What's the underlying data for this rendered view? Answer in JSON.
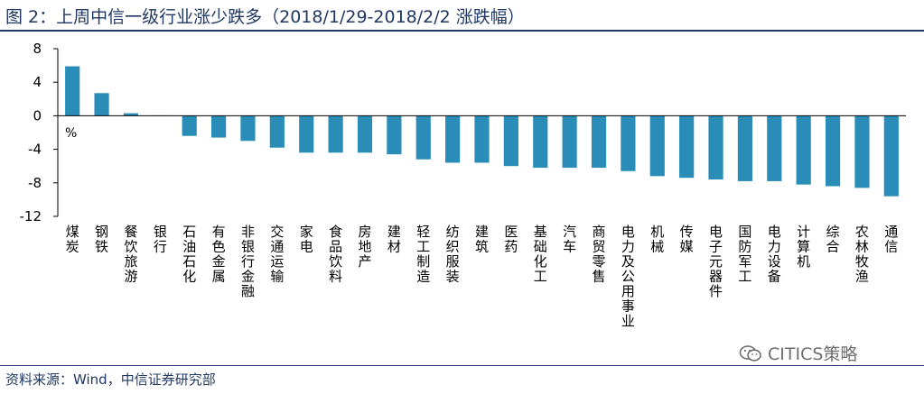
{
  "header": {
    "title": "图 2：上周中信一级行业涨少跌多（2018/1/29-2018/2/2 涨跌幅）"
  },
  "footer": {
    "source": "资料来源：Wind，中信证券研究部",
    "watermark": "CITICS策略",
    "watermark_icon": "wechat-icon"
  },
  "chart_data": {
    "type": "bar",
    "unit_label": "%",
    "ylim": [
      -12,
      8
    ],
    "yticks": [
      8,
      4,
      0,
      -4,
      -8,
      -12
    ],
    "grid": false,
    "bar_color": "#2A8DB8",
    "categories": [
      "煤炭",
      "钢铁",
      "餐饮旅游",
      "银行",
      "石油石化",
      "有色金属",
      "非银行金融",
      "交通运输",
      "家电",
      "食品饮料",
      "房地产",
      "建材",
      "轻工制造",
      "纺织服装",
      "建筑",
      "医药",
      "基础化工",
      "汽车",
      "商贸零售",
      "电力及公用事业",
      "机械",
      "传媒",
      "电子元器件",
      "国防军工",
      "电力设备",
      "计算机",
      "综合",
      "农林牧渔",
      "通信"
    ],
    "values": [
      5.9,
      2.7,
      0.3,
      0.05,
      -2.4,
      -2.6,
      -3.0,
      -3.8,
      -4.4,
      -4.4,
      -4.4,
      -4.6,
      -5.2,
      -5.6,
      -5.6,
      -6.0,
      -6.2,
      -6.2,
      -6.2,
      -6.6,
      -7.2,
      -7.4,
      -7.6,
      -7.8,
      -7.8,
      -8.2,
      -8.4,
      -8.6,
      -9.6
    ]
  }
}
